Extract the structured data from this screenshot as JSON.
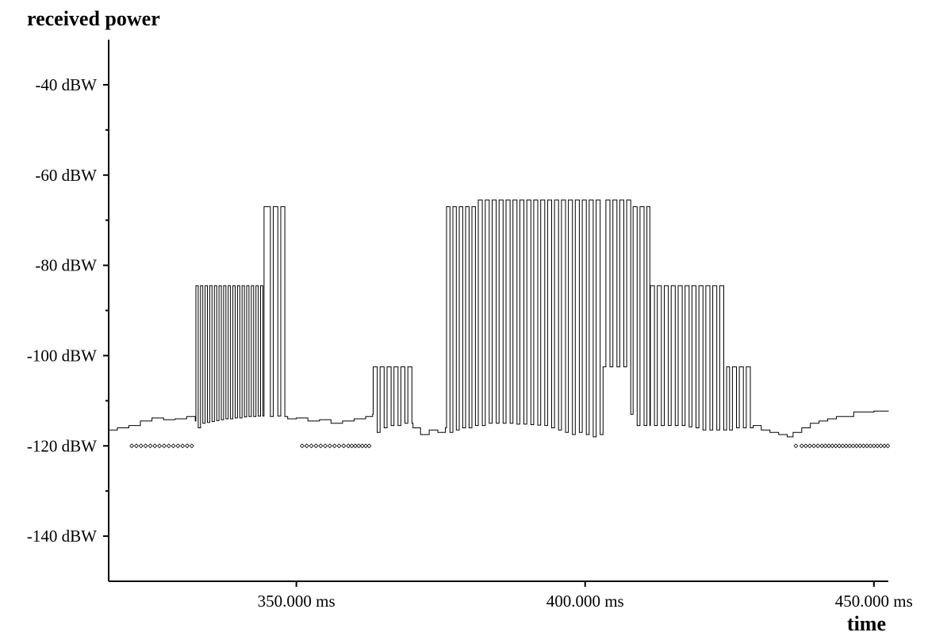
{
  "chart_data": {
    "type": "line",
    "title": "",
    "ylabel": "received power",
    "xlabel": "time",
    "x_unit": "ms",
    "y_unit": "dBW",
    "xlim": [
      317.5,
      452.5
    ],
    "ylim": [
      -150,
      -30
    ],
    "grid": false,
    "legend": "none",
    "x_ticks": [
      {
        "value": 350,
        "label": "350.000 ms"
      },
      {
        "value": 400,
        "label": "400.000 ms"
      },
      {
        "value": 450,
        "label": "450.000 ms"
      }
    ],
    "y_ticks": [
      {
        "value": -40,
        "label": "-40 dBW"
      },
      {
        "value": -60,
        "label": "-60 dBW"
      },
      {
        "value": -80,
        "label": "-80 dBW"
      },
      {
        "value": -100,
        "label": "-100 dBW"
      },
      {
        "value": -120,
        "label": "-120 dBW"
      },
      {
        "value": -140,
        "label": "-140 dBW"
      }
    ],
    "y_minor_ticks": [
      -50,
      -70,
      -90,
      -110,
      -130
    ],
    "series": [
      {
        "style": "step",
        "points": [
          [
            317.5,
            -116.5
          ],
          [
            319.0,
            -116.0
          ],
          [
            321.0,
            -115.5
          ],
          [
            323.0,
            -114.5
          ],
          [
            325.0,
            -113.8
          ],
          [
            327.0,
            -114.2
          ],
          [
            329.0,
            -114.0
          ],
          [
            331.0,
            -113.5
          ],
          [
            332.5,
            -114.5
          ],
          [
            332.6,
            -84.5
          ],
          [
            333.0,
            -116.0
          ],
          [
            333.4,
            -84.5
          ],
          [
            333.8,
            -115.0
          ],
          [
            334.2,
            -84.5
          ],
          [
            334.6,
            -114.8
          ],
          [
            335.0,
            -84.5
          ],
          [
            335.4,
            -114.6
          ],
          [
            335.8,
            -84.5
          ],
          [
            336.2,
            -114.4
          ],
          [
            336.6,
            -84.5
          ],
          [
            337.0,
            -114.2
          ],
          [
            337.4,
            -84.5
          ],
          [
            337.8,
            -114.0
          ],
          [
            338.2,
            -84.5
          ],
          [
            338.6,
            -114.0
          ],
          [
            339.0,
            -84.5
          ],
          [
            339.4,
            -113.8
          ],
          [
            339.8,
            -84.5
          ],
          [
            340.2,
            -113.8
          ],
          [
            340.6,
            -84.5
          ],
          [
            341.0,
            -113.6
          ],
          [
            341.4,
            -84.5
          ],
          [
            341.8,
            -113.5
          ],
          [
            342.2,
            -84.5
          ],
          [
            342.6,
            -113.5
          ],
          [
            343.0,
            -84.5
          ],
          [
            343.4,
            -113.4
          ],
          [
            343.8,
            -84.5
          ],
          [
            344.2,
            -113.4
          ],
          [
            344.4,
            -67.0
          ],
          [
            345.5,
            -113.5
          ],
          [
            346.0,
            -67.0
          ],
          [
            346.8,
            -113.4
          ],
          [
            347.3,
            -67.0
          ],
          [
            348.0,
            -113.5
          ],
          [
            348.5,
            -114.0
          ],
          [
            350.0,
            -113.8
          ],
          [
            352.0,
            -114.5
          ],
          [
            354.0,
            -114.2
          ],
          [
            356.0,
            -115.0
          ],
          [
            358.0,
            -114.5
          ],
          [
            360.0,
            -114.0
          ],
          [
            362.0,
            -113.5
          ],
          [
            363.2,
            -113.0
          ],
          [
            363.3,
            -102.5
          ],
          [
            364.0,
            -117.0
          ],
          [
            364.5,
            -102.5
          ],
          [
            365.2,
            -116.0
          ],
          [
            365.7,
            -102.5
          ],
          [
            366.4,
            -115.5
          ],
          [
            366.9,
            -102.5
          ],
          [
            367.6,
            -115.5
          ],
          [
            368.1,
            -102.5
          ],
          [
            368.8,
            -115.0
          ],
          [
            369.3,
            -102.5
          ],
          [
            370.0,
            -115.0
          ],
          [
            370.2,
            -116.0
          ],
          [
            371.5,
            -117.5
          ],
          [
            373.0,
            -116.5
          ],
          [
            374.5,
            -117.0
          ],
          [
            375.8,
            -116.0
          ],
          [
            376.0,
            -67.0
          ],
          [
            376.6,
            -117.0
          ],
          [
            377.1,
            -67.0
          ],
          [
            377.7,
            -116.5
          ],
          [
            378.2,
            -67.0
          ],
          [
            378.8,
            -116.0
          ],
          [
            379.3,
            -67.0
          ],
          [
            379.9,
            -116.0
          ],
          [
            380.4,
            -67.0
          ],
          [
            381.0,
            -115.5
          ],
          [
            381.5,
            -65.5
          ],
          [
            382.2,
            -115.5
          ],
          [
            382.7,
            -65.5
          ],
          [
            383.4,
            -115.0
          ],
          [
            383.9,
            -65.5
          ],
          [
            384.6,
            -115.0
          ],
          [
            385.1,
            -65.5
          ],
          [
            385.8,
            -115.0
          ],
          [
            386.3,
            -65.5
          ],
          [
            387.0,
            -115.0
          ],
          [
            387.5,
            -65.5
          ],
          [
            388.2,
            -115.2
          ],
          [
            388.7,
            -65.5
          ],
          [
            389.4,
            -115.2
          ],
          [
            389.9,
            -65.5
          ],
          [
            390.6,
            -115.3
          ],
          [
            391.1,
            -65.5
          ],
          [
            391.8,
            -115.4
          ],
          [
            392.3,
            -65.5
          ],
          [
            393.0,
            -115.5
          ],
          [
            393.5,
            -65.5
          ],
          [
            394.2,
            -116.0
          ],
          [
            394.7,
            -65.5
          ],
          [
            395.4,
            -116.5
          ],
          [
            395.9,
            -65.5
          ],
          [
            396.6,
            -117.0
          ],
          [
            397.1,
            -65.5
          ],
          [
            397.8,
            -117.5
          ],
          [
            398.3,
            -65.5
          ],
          [
            399.0,
            -117.0
          ],
          [
            399.5,
            -65.5
          ],
          [
            400.2,
            -117.5
          ],
          [
            400.7,
            -65.5
          ],
          [
            401.4,
            -118.0
          ],
          [
            401.9,
            -65.5
          ],
          [
            402.6,
            -117.5
          ],
          [
            403.1,
            -102.5
          ],
          [
            403.6,
            -65.5
          ],
          [
            404.3,
            -102.5
          ],
          [
            404.8,
            -65.5
          ],
          [
            405.5,
            -102.5
          ],
          [
            406.0,
            -65.5
          ],
          [
            406.7,
            -102.5
          ],
          [
            407.2,
            -65.5
          ],
          [
            407.9,
            -113.0
          ],
          [
            408.3,
            -67.0
          ],
          [
            409.0,
            -115.5
          ],
          [
            409.5,
            -67.0
          ],
          [
            410.2,
            -115.5
          ],
          [
            410.7,
            -67.0
          ],
          [
            411.2,
            -115.5
          ],
          [
            411.3,
            -84.5
          ],
          [
            412.0,
            -115.5
          ],
          [
            412.5,
            -84.5
          ],
          [
            413.2,
            -115.5
          ],
          [
            413.7,
            -84.5
          ],
          [
            414.4,
            -115.5
          ],
          [
            414.9,
            -84.5
          ],
          [
            415.6,
            -115.5
          ],
          [
            416.1,
            -84.5
          ],
          [
            416.8,
            -115.5
          ],
          [
            417.3,
            -84.5
          ],
          [
            418.0,
            -115.8
          ],
          [
            418.5,
            -84.5
          ],
          [
            419.2,
            -116.0
          ],
          [
            419.7,
            -84.5
          ],
          [
            420.4,
            -116.5
          ],
          [
            420.9,
            -84.5
          ],
          [
            421.6,
            -116.5
          ],
          [
            422.1,
            -84.5
          ],
          [
            422.8,
            -116.5
          ],
          [
            423.3,
            -84.5
          ],
          [
            424.0,
            -116.5
          ],
          [
            424.5,
            -102.5
          ],
          [
            425.0,
            -116.5
          ],
          [
            425.5,
            -102.5
          ],
          [
            426.2,
            -116.0
          ],
          [
            426.7,
            -102.5
          ],
          [
            427.4,
            -116.0
          ],
          [
            427.9,
            -102.5
          ],
          [
            428.6,
            -116.0
          ],
          [
            429.1,
            -115.5
          ],
          [
            430.5,
            -116.5
          ],
          [
            432.0,
            -117.0
          ],
          [
            433.5,
            -117.5
          ],
          [
            435.0,
            -118.0
          ],
          [
            436.0,
            -117.0
          ],
          [
            437.5,
            -116.0
          ],
          [
            439.0,
            -115.0
          ],
          [
            440.5,
            -114.5
          ],
          [
            442.0,
            -114.0
          ],
          [
            443.5,
            -113.5
          ],
          [
            445.0,
            -113.5
          ],
          [
            446.5,
            -112.5
          ],
          [
            448.0,
            -112.5
          ],
          [
            450.0,
            -112.3
          ],
          [
            452.5,
            -112.2
          ]
        ]
      },
      {
        "style": "marker",
        "marker": "diamond",
        "y": -120,
        "x": [
          321.5,
          322.3,
          323.1,
          323.9,
          324.7,
          325.5,
          326.3,
          327.1,
          327.9,
          328.7,
          329.5,
          330.3,
          331.1,
          331.9,
          351.0,
          351.8,
          352.6,
          353.4,
          354.2,
          355.0,
          355.8,
          356.6,
          357.4,
          358.2,
          359.0,
          359.6,
          360.2,
          360.8,
          361.4,
          362.0,
          362.6,
          436.5,
          437.5,
          438.2,
          438.9,
          439.6,
          440.3,
          441.0,
          441.6,
          442.2,
          442.8,
          443.4,
          444.0,
          444.6,
          445.2,
          445.8,
          446.4,
          447.0,
          447.6,
          448.2,
          448.8,
          449.4,
          450.0,
          450.6,
          451.2,
          451.8,
          452.4
        ]
      }
    ]
  }
}
